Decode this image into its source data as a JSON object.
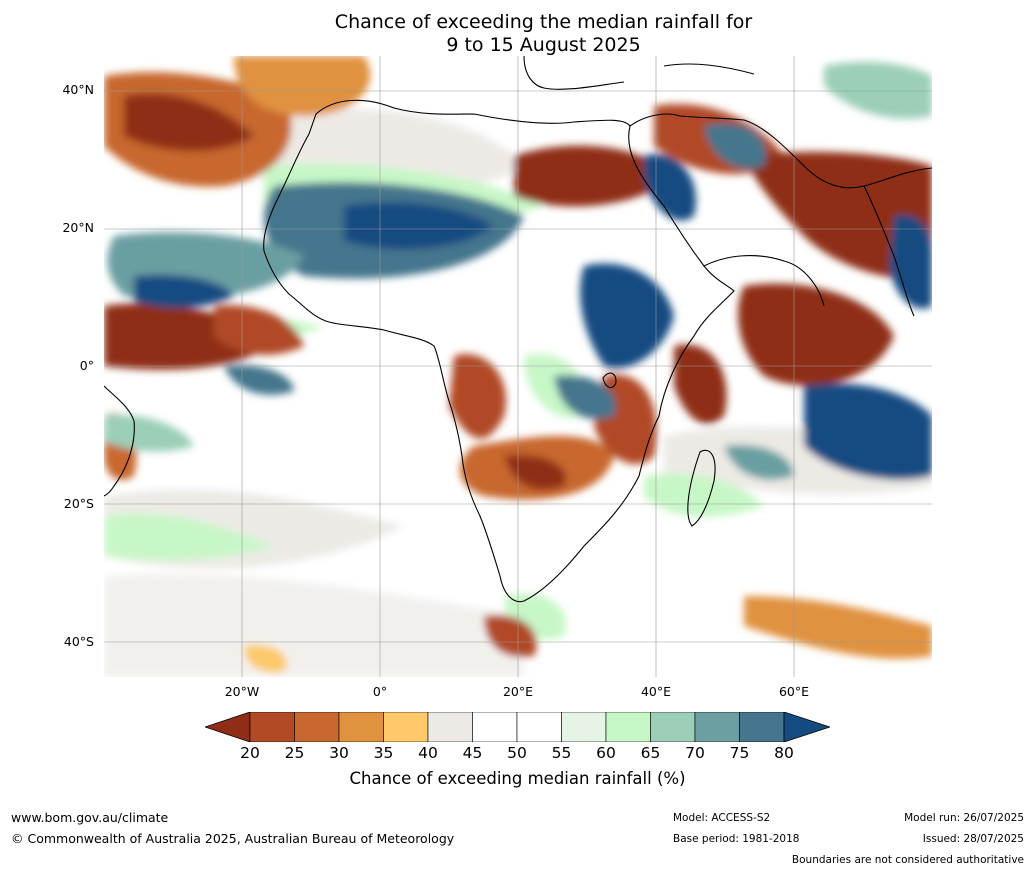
{
  "title": {
    "line1": "Chance of exceeding the median rainfall for",
    "line2": "9 to 15 August 2025"
  },
  "map": {
    "lat_labels": [
      "40°N",
      "20°N",
      "0°",
      "20°S",
      "40°S"
    ],
    "lon_labels": [
      "20°W",
      "0°",
      "20°E",
      "40°E",
      "60°E"
    ]
  },
  "legend": {
    "ticks": [
      "20",
      "25",
      "30",
      "35",
      "40",
      "45",
      "50",
      "55",
      "60",
      "65",
      "70",
      "75",
      "80"
    ],
    "colors": [
      "#8f2d17",
      "#b14a25",
      "#c8672f",
      "#e0923f",
      "#fdc86a",
      "#edeae5",
      "#ffffff",
      "#ffffff",
      "#e6f4e6",
      "#c7f7c7",
      "#9bcfb7",
      "#6b9fa2",
      "#45768d",
      "#144c82"
    ],
    "label": "Chance of exceeding median rainfall (%)"
  },
  "footer": {
    "website": "www.bom.gov.au/climate",
    "copyright": "© Commonwealth of Australia 2025, Australian Bureau of Meteorology",
    "model": "Model: ACCESS-S2",
    "base_period": "Base period: 1981-2018",
    "model_run": "Model run: 26/07/2025",
    "issued": "Issued: 28/07/2025",
    "disclaimer": "Boundaries are not considered authoritative"
  }
}
